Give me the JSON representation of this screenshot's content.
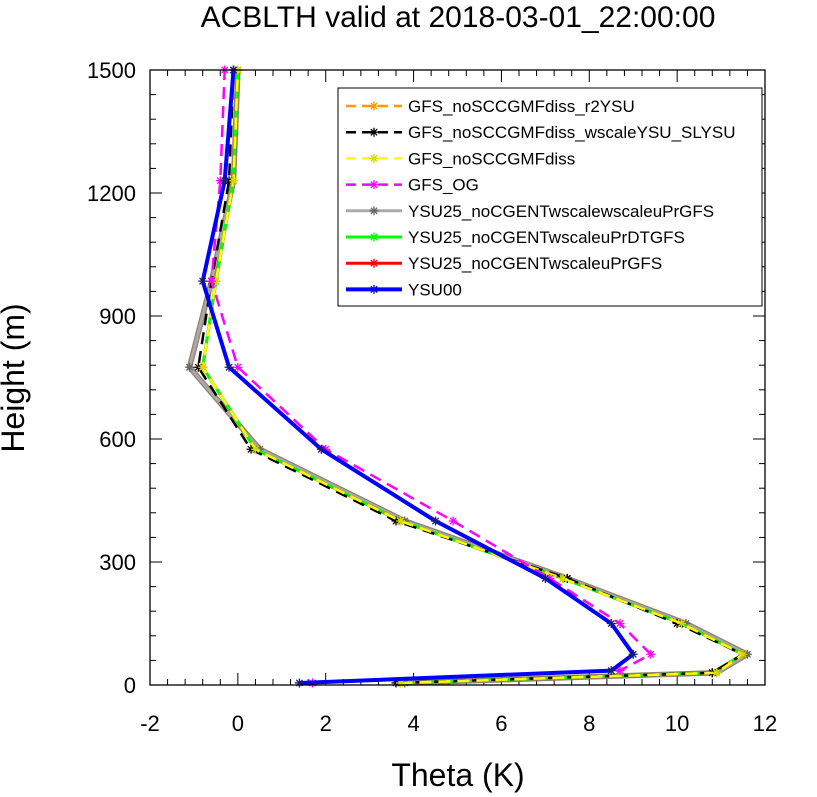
{
  "chart_data": {
    "type": "line",
    "title": "ACBLTH valid at 2018-03-01_22:00:00",
    "xlabel": "Theta (K)",
    "ylabel": "Height (m)",
    "xlim": [
      -2,
      12
    ],
    "ylim": [
      0,
      1500
    ],
    "xticks": [
      -2,
      0,
      2,
      4,
      6,
      8,
      10,
      12
    ],
    "yticks": [
      0,
      300,
      600,
      900,
      1200,
      1500
    ],
    "legend_position": "top-right",
    "series": [
      {
        "name": "GFS_noSCCGMFdiss_r2YSU",
        "color": "#ff9900",
        "dash": "dash",
        "marker": "asterisk",
        "x": [
          3.7,
          10.8,
          11.5,
          10.1,
          7.4,
          3.7,
          0.4,
          -0.8,
          -0.5,
          -0.1,
          0.0
        ],
        "y": [
          5,
          30,
          75,
          150,
          260,
          400,
          575,
          775,
          985,
          1230,
          1500
        ]
      },
      {
        "name": "GFS_noSCCGMFdiss_wscaleYSU_SLYSU",
        "color": "#000000",
        "dash": "dash",
        "marker": "asterisk",
        "x": [
          3.6,
          10.8,
          11.5,
          10.0,
          7.5,
          3.6,
          0.3,
          -0.9,
          -0.6,
          -0.2,
          -0.1
        ],
        "y": [
          5,
          30,
          75,
          150,
          260,
          400,
          575,
          775,
          985,
          1230,
          1500
        ]
      },
      {
        "name": "GFS_noSCCGMFdiss",
        "color": "#ffff00",
        "dash": "dash",
        "marker": "asterisk",
        "x": [
          3.7,
          10.9,
          11.5,
          10.1,
          7.4,
          3.7,
          0.4,
          -0.8,
          -0.5,
          -0.1,
          0.0
        ],
        "y": [
          5,
          30,
          75,
          150,
          260,
          400,
          575,
          775,
          985,
          1230,
          1500
        ]
      },
      {
        "name": "GFS_OG",
        "color": "#ff00ff",
        "dash": "dash",
        "marker": "asterisk",
        "x": [
          1.7,
          8.7,
          9.4,
          8.7,
          7.1,
          4.9,
          2.0,
          0.0,
          -0.6,
          -0.4,
          -0.3
        ],
        "y": [
          5,
          35,
          75,
          150,
          260,
          400,
          575,
          775,
          985,
          1230,
          1500
        ]
      },
      {
        "name": "YSU25_noCGENTwscalewscaleuPrGFS",
        "color": "#aaaaaa",
        "dash": "solid",
        "marker": "asterisk",
        "x": [
          3.8,
          10.9,
          11.6,
          10.2,
          7.5,
          3.8,
          0.5,
          -1.1,
          -0.6,
          -0.1,
          0.0
        ],
        "y": [
          5,
          30,
          75,
          150,
          260,
          400,
          575,
          775,
          985,
          1230,
          1500
        ]
      },
      {
        "name": "YSU25_noCGENTwscaleuPrDTGFS",
        "color": "#00ff00",
        "dash": "solid",
        "marker": "asterisk",
        "x": [
          3.7,
          10.8,
          11.5,
          10.1,
          7.4,
          3.7,
          0.4,
          -0.8,
          -0.5,
          -0.1,
          0.0
        ],
        "y": [
          5,
          30,
          75,
          150,
          260,
          400,
          575,
          775,
          985,
          1230,
          1500
        ]
      },
      {
        "name": "YSU25_noCGENTwscaleuPrGFS",
        "color": "#ff0000",
        "dash": "solid",
        "marker": "asterisk",
        "x": [
          3.7,
          10.8,
          11.5,
          10.1,
          7.4,
          3.7,
          0.4,
          -0.8,
          -0.5,
          -0.1,
          0.0
        ],
        "y": [
          5,
          30,
          75,
          150,
          260,
          400,
          575,
          775,
          985,
          1230,
          1500
        ]
      },
      {
        "name": "YSU00",
        "color": "#0000ff",
        "dash": "solid",
        "marker": "asterisk",
        "x": [
          1.4,
          8.5,
          9.0,
          8.5,
          7.0,
          4.5,
          1.9,
          -0.2,
          -0.8,
          -0.3,
          -0.1
        ],
        "y": [
          5,
          35,
          75,
          150,
          260,
          400,
          575,
          775,
          985,
          1230,
          1500
        ]
      }
    ]
  }
}
